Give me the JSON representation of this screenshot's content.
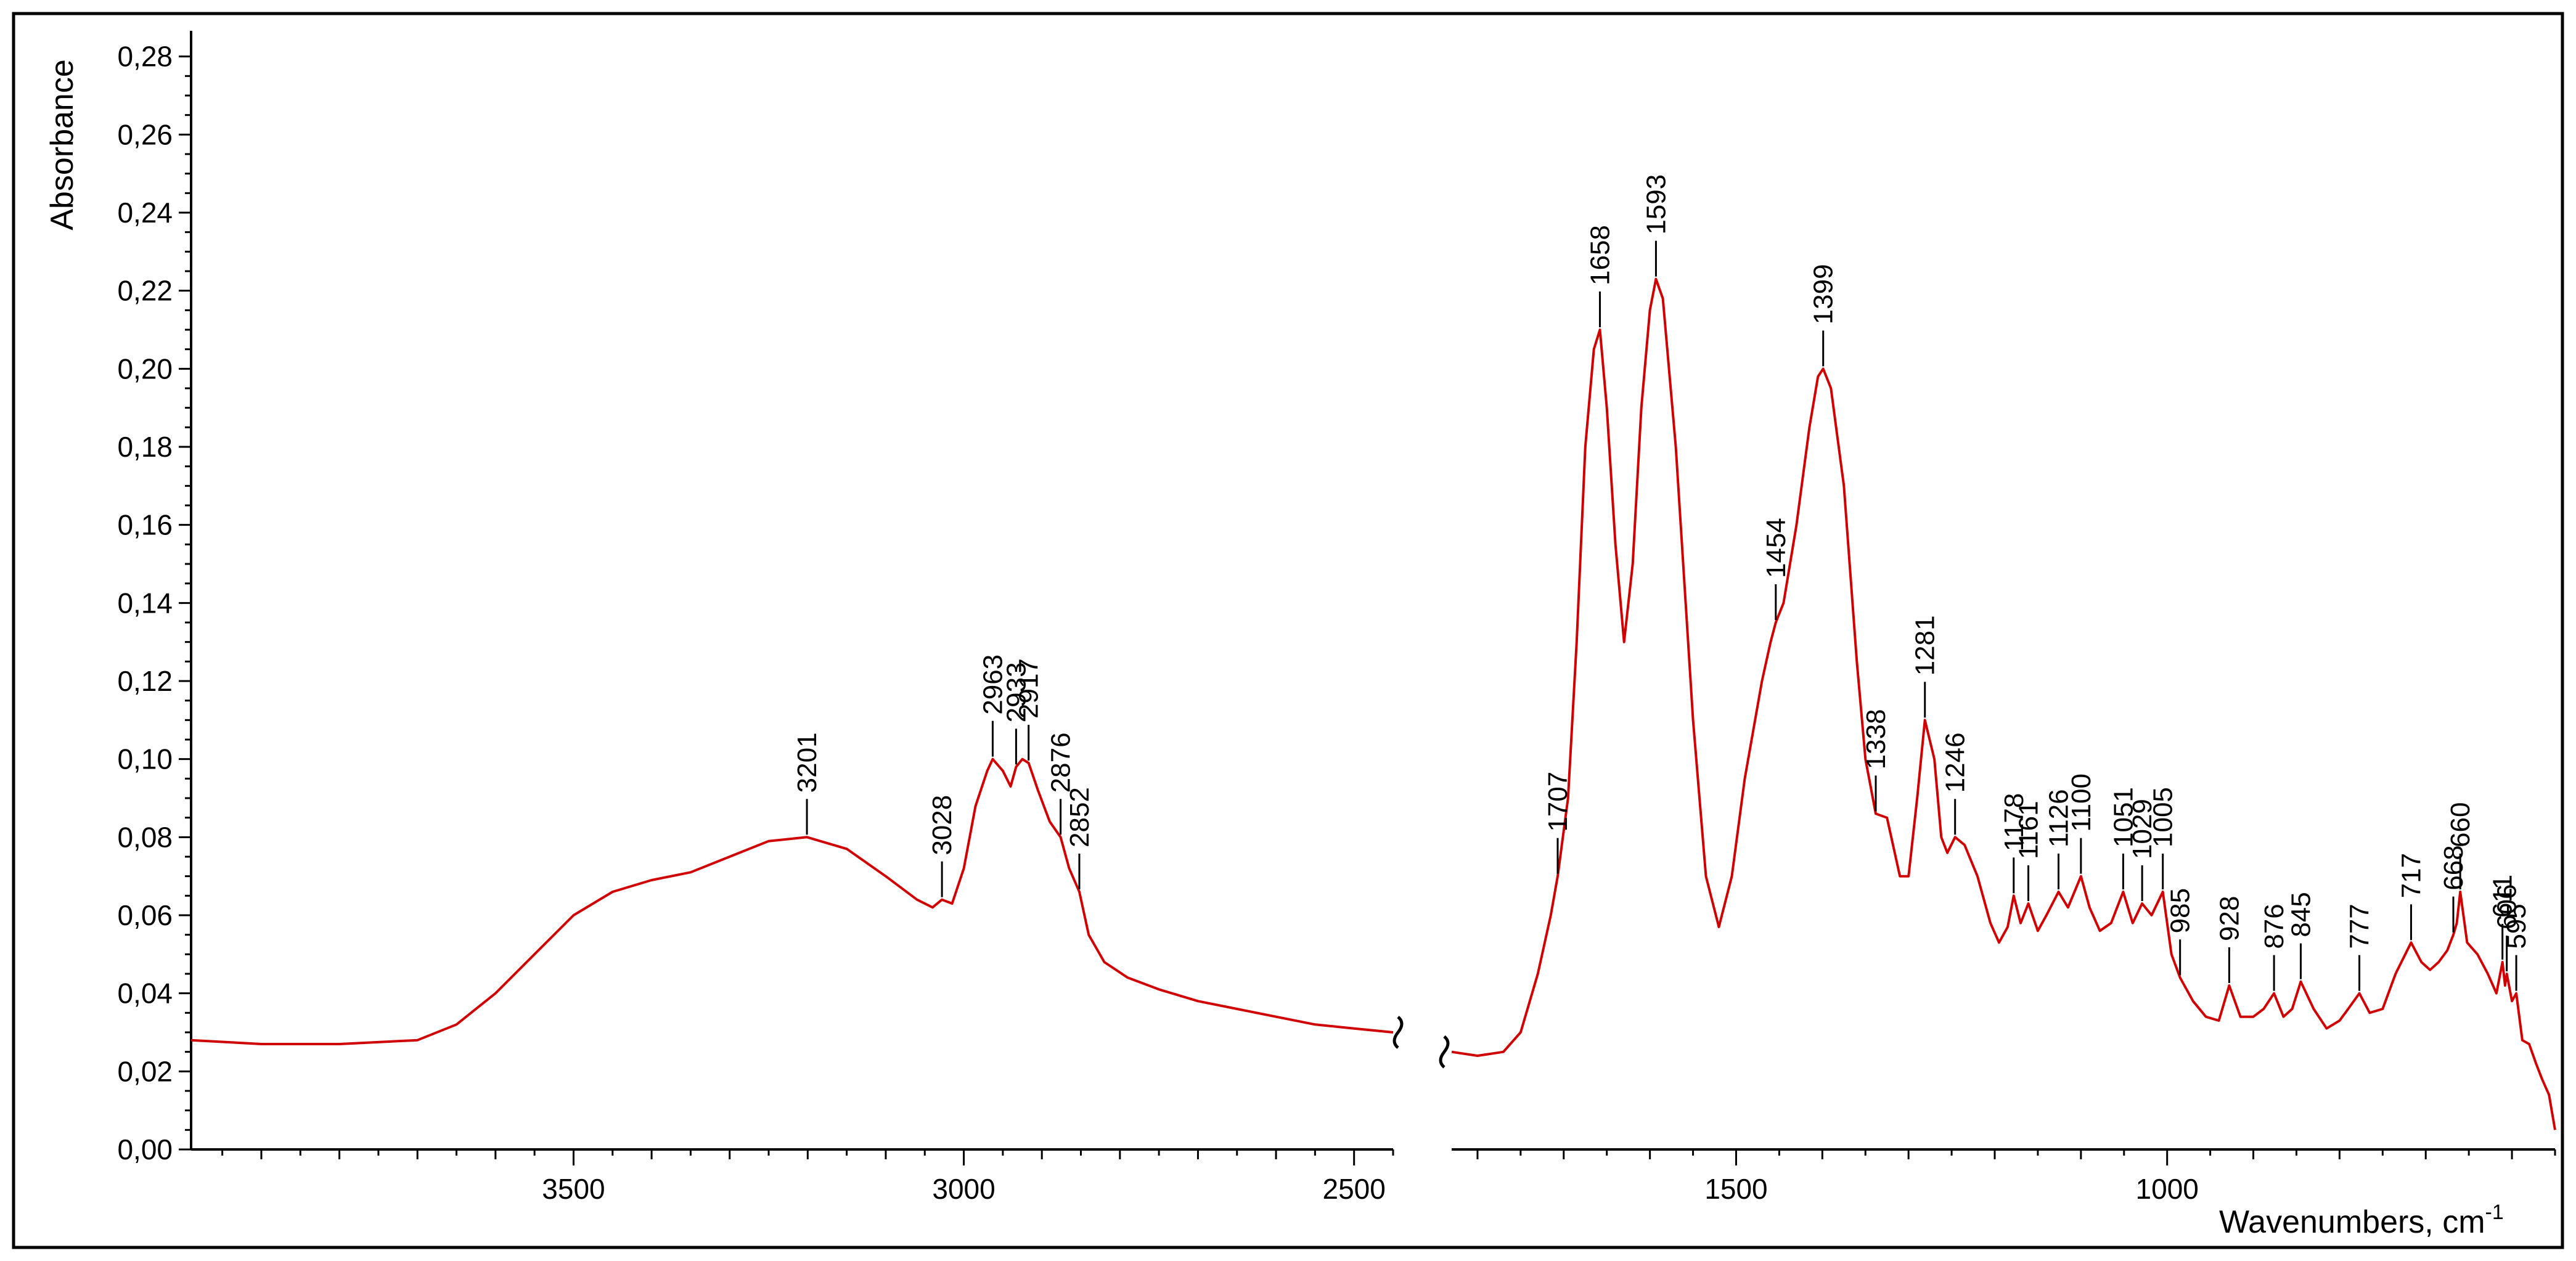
{
  "chart_data": {
    "type": "line",
    "xlabel": "Wavenumbers, cm",
    "xlabel_sup": "-1",
    "ylabel": "Absorbance",
    "ylim": [
      0.0,
      0.285
    ],
    "x_axis_break": true,
    "x_segments": [
      [
        3990,
        2450
      ],
      [
        1830,
        550
      ]
    ],
    "x_reversed": true,
    "grid": false,
    "colors": {
      "line": "#d00000",
      "axis": "#000000"
    },
    "y_ticks": [
      "0,00",
      "0,02",
      "0,04",
      "0,06",
      "0,08",
      "0,10",
      "0,12",
      "0,14",
      "0,16",
      "0,18",
      "0,20",
      "0,22",
      "0,24",
      "0,26",
      "0,28"
    ],
    "y_tick_values": [
      0.0,
      0.02,
      0.04,
      0.06,
      0.08,
      0.1,
      0.12,
      0.14,
      0.16,
      0.18,
      0.2,
      0.22,
      0.24,
      0.26,
      0.28
    ],
    "x_ticks": [
      "3500",
      "3000",
      "2500",
      "1500",
      "1000"
    ],
    "x_tick_values": [
      3500,
      3000,
      2500,
      1500,
      1000
    ],
    "series": [
      {
        "x": [
          3990,
          3900,
          3800,
          3700,
          3650,
          3600,
          3550,
          3500,
          3450,
          3400,
          3350,
          3300,
          3250,
          3201,
          3150,
          3100,
          3060,
          3040,
          3028,
          3015,
          3000,
          2985,
          2970,
          2963,
          2950,
          2940,
          2933,
          2925,
          2917,
          2905,
          2890,
          2876,
          2865,
          2852,
          2840,
          2820,
          2790,
          2750,
          2700,
          2650,
          2600,
          2550,
          2500,
          2450
        ],
        "y": [
          0.028,
          0.027,
          0.027,
          0.028,
          0.032,
          0.04,
          0.05,
          0.06,
          0.066,
          0.069,
          0.071,
          0.075,
          0.079,
          0.08,
          0.077,
          0.07,
          0.064,
          0.062,
          0.064,
          0.063,
          0.072,
          0.088,
          0.097,
          0.1,
          0.097,
          0.093,
          0.098,
          0.1,
          0.099,
          0.092,
          0.084,
          0.08,
          0.072,
          0.066,
          0.055,
          0.048,
          0.044,
          0.041,
          0.038,
          0.036,
          0.034,
          0.032,
          0.031,
          0.03
        ]
      },
      {
        "x": [
          1830,
          1800,
          1770,
          1750,
          1730,
          1715,
          1707,
          1695,
          1685,
          1675,
          1665,
          1658,
          1650,
          1640,
          1630,
          1620,
          1610,
          1600,
          1593,
          1585,
          1570,
          1550,
          1535,
          1520,
          1505,
          1490,
          1470,
          1460,
          1454,
          1445,
          1430,
          1415,
          1405,
          1399,
          1390,
          1375,
          1360,
          1350,
          1338,
          1325,
          1310,
          1300,
          1290,
          1281,
          1270,
          1262,
          1255,
          1246,
          1235,
          1220,
          1205,
          1195,
          1185,
          1178,
          1170,
          1161,
          1150,
          1140,
          1126,
          1115,
          1100,
          1090,
          1078,
          1065,
          1051,
          1040,
          1029,
          1018,
          1005,
          995,
          985,
          970,
          955,
          940,
          928,
          915,
          900,
          888,
          876,
          865,
          855,
          845,
          830,
          815,
          800,
          790,
          777,
          765,
          750,
          735,
          717,
          705,
          695,
          685,
          675,
          668,
          664,
          660,
          652,
          640,
          628,
          618,
          611,
          608,
          606,
          600,
          595,
          588,
          580,
          572,
          565,
          557,
          550
        ],
        "y": [
          0.025,
          0.024,
          0.025,
          0.03,
          0.045,
          0.06,
          0.07,
          0.09,
          0.13,
          0.18,
          0.205,
          0.21,
          0.19,
          0.155,
          0.13,
          0.15,
          0.19,
          0.215,
          0.223,
          0.218,
          0.18,
          0.11,
          0.07,
          0.057,
          0.07,
          0.095,
          0.12,
          0.13,
          0.135,
          0.14,
          0.16,
          0.185,
          0.198,
          0.2,
          0.195,
          0.17,
          0.125,
          0.1,
          0.086,
          0.085,
          0.07,
          0.07,
          0.09,
          0.11,
          0.1,
          0.08,
          0.076,
          0.08,
          0.078,
          0.07,
          0.058,
          0.053,
          0.057,
          0.065,
          0.058,
          0.063,
          0.056,
          0.06,
          0.066,
          0.062,
          0.07,
          0.062,
          0.056,
          0.058,
          0.066,
          0.058,
          0.063,
          0.06,
          0.066,
          0.05,
          0.044,
          0.038,
          0.034,
          0.033,
          0.042,
          0.034,
          0.034,
          0.036,
          0.04,
          0.034,
          0.036,
          0.043,
          0.036,
          0.031,
          0.033,
          0.036,
          0.04,
          0.035,
          0.036,
          0.045,
          0.053,
          0.048,
          0.046,
          0.048,
          0.051,
          0.055,
          0.058,
          0.066,
          0.053,
          0.05,
          0.045,
          0.04,
          0.048,
          0.042,
          0.045,
          0.038,
          0.04,
          0.028,
          0.027,
          0.022,
          0.018,
          0.014,
          0.005
        ]
      }
    ],
    "peaks": [
      {
        "label": "3201",
        "x": 3201,
        "y": 0.08
      },
      {
        "label": "3028",
        "x": 3028,
        "y": 0.064
      },
      {
        "label": "2963",
        "x": 2963,
        "y": 0.1
      },
      {
        "label": "2933",
        "x": 2933,
        "y": 0.098
      },
      {
        "label": "2917",
        "x": 2917,
        "y": 0.099
      },
      {
        "label": "2876",
        "x": 2876,
        "y": 0.08
      },
      {
        "label": "2852",
        "x": 2852,
        "y": 0.066
      },
      {
        "label": "1707",
        "x": 1707,
        "y": 0.07
      },
      {
        "label": "1658",
        "x": 1658,
        "y": 0.21
      },
      {
        "label": "1593",
        "x": 1593,
        "y": 0.223
      },
      {
        "label": "1454",
        "x": 1454,
        "y": 0.135
      },
      {
        "label": "1399",
        "x": 1399,
        "y": 0.2
      },
      {
        "label": "1338",
        "x": 1338,
        "y": 0.086
      },
      {
        "label": "1281",
        "x": 1281,
        "y": 0.11
      },
      {
        "label": "1246",
        "x": 1246,
        "y": 0.08
      },
      {
        "label": "1178",
        "x": 1178,
        "y": 0.065
      },
      {
        "label": "1161",
        "x": 1161,
        "y": 0.063
      },
      {
        "label": "1126",
        "x": 1126,
        "y": 0.066
      },
      {
        "label": "1100",
        "x": 1100,
        "y": 0.07
      },
      {
        "label": "1051",
        "x": 1051,
        "y": 0.066
      },
      {
        "label": "1029",
        "x": 1029,
        "y": 0.063
      },
      {
        "label": "1005",
        "x": 1005,
        "y": 0.066
      },
      {
        "label": "985",
        "x": 985,
        "y": 0.044
      },
      {
        "label": "928",
        "x": 928,
        "y": 0.042
      },
      {
        "label": "876",
        "x": 876,
        "y": 0.04
      },
      {
        "label": "845",
        "x": 845,
        "y": 0.043
      },
      {
        "label": "777",
        "x": 777,
        "y": 0.04
      },
      {
        "label": "717",
        "x": 717,
        "y": 0.053
      },
      {
        "label": "668",
        "x": 668,
        "y": 0.055
      },
      {
        "label": "660",
        "x": 660,
        "y": 0.066
      },
      {
        "label": "611",
        "x": 611,
        "y": 0.048
      },
      {
        "label": "606",
        "x": 606,
        "y": 0.045
      },
      {
        "label": "595",
        "x": 595,
        "y": 0.04
      }
    ]
  }
}
